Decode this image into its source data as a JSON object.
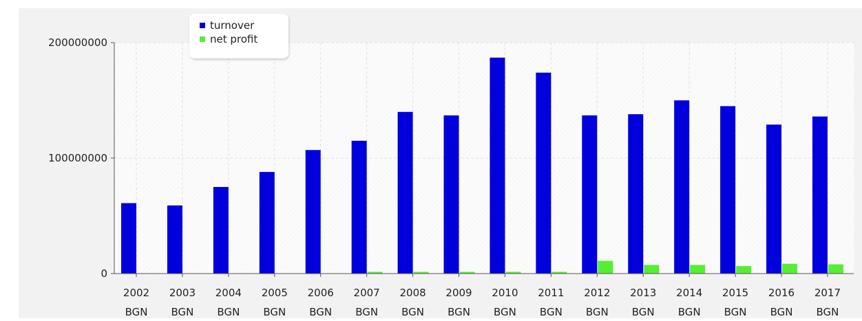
{
  "chart_data": {
    "type": "bar",
    "categories": [
      "2002",
      "2003",
      "2004",
      "2005",
      "2006",
      "2007",
      "2008",
      "2009",
      "2010",
      "2011",
      "2012",
      "2013",
      "2014",
      "2015",
      "2016",
      "2017"
    ],
    "category_unit": "BGN",
    "series": [
      {
        "name": "turnover",
        "color": "#0000dd",
        "values": [
          61000000,
          59000000,
          75000000,
          88000000,
          107000000,
          115000000,
          140000000,
          137000000,
          187000000,
          174000000,
          137000000,
          138000000,
          150000000,
          145000000,
          129000000,
          136000000
        ]
      },
      {
        "name": "net profit",
        "color": "#55ee33",
        "values": [
          0,
          0,
          0,
          0,
          0,
          1500000,
          1500000,
          1500000,
          1500000,
          1500000,
          11000000,
          7500000,
          7500000,
          6500000,
          8500000,
          8000000
        ]
      }
    ],
    "yticks": [
      "0",
      "100000000",
      "200000000"
    ],
    "ylim": [
      0,
      200000000
    ],
    "grid": true,
    "legend_position": "top-left"
  }
}
